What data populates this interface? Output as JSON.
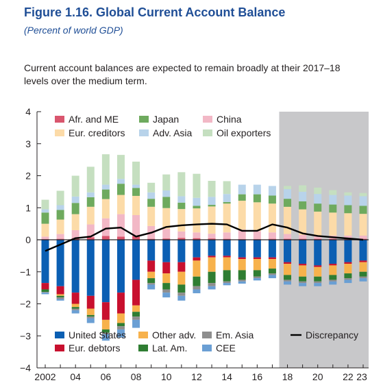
{
  "figure": {
    "title": "Figure 1.16.  Global Current Account Balance",
    "subtitle": "(Percent of world GDP)",
    "description": "Current account balances are expected to remain broadly at their 2017–18 levels over the medium term."
  },
  "chart_data": {
    "type": "bar",
    "stacked": true,
    "title": "Global Current Account Balance",
    "xlabel": "",
    "ylabel": "",
    "ylim": [
      -4,
      4
    ],
    "yticks": [
      "4",
      "3",
      "2",
      "1",
      "0",
      "−1",
      "−2",
      "−3",
      "−4"
    ],
    "categories": [
      "2002",
      "03",
      "04",
      "05",
      "06",
      "07",
      "08",
      "09",
      "10",
      "11",
      "12",
      "13",
      "14",
      "15",
      "16",
      "17",
      "18",
      "19",
      "20",
      "21",
      "22",
      "23"
    ],
    "xtick_labels": [
      "2002",
      "04",
      "06",
      "08",
      "10",
      "12",
      "14",
      "16",
      "18",
      "20",
      "22",
      "23"
    ],
    "projection_shaded_from": "18",
    "grid": false,
    "series": [
      {
        "name": "Afr. and ME",
        "color": "#d9566e",
        "values": [
          0.02,
          0.03,
          0.05,
          0.08,
          0.12,
          0.1,
          0.12,
          0.03,
          0.04,
          0.06,
          0.05,
          0.04,
          0.03,
          0.02,
          0.02,
          0.03,
          0.03,
          0.03,
          0.03,
          0.03,
          0.03,
          0.03
        ]
      },
      {
        "name": "China",
        "color": "#f2b8c6",
        "values": [
          0.08,
          0.15,
          0.25,
          0.4,
          0.55,
          0.7,
          0.65,
          0.4,
          0.3,
          0.2,
          0.18,
          0.15,
          0.2,
          0.3,
          0.25,
          0.2,
          0.15,
          0.12,
          0.1,
          0.1,
          0.1,
          0.1
        ]
      },
      {
        "name": "Eur. creditors",
        "color": "#fcdba8",
        "values": [
          0.4,
          0.45,
          0.5,
          0.55,
          0.6,
          0.6,
          0.6,
          0.6,
          0.65,
          0.7,
          0.75,
          0.85,
          0.9,
          0.9,
          0.9,
          0.9,
          0.85,
          0.8,
          0.75,
          0.72,
          0.7,
          0.68
        ]
      },
      {
        "name": "Japan",
        "color": "#6eaa5e",
        "values": [
          0.35,
          0.3,
          0.35,
          0.3,
          0.3,
          0.35,
          0.25,
          0.25,
          0.35,
          0.2,
          0.08,
          0.05,
          0.05,
          0.2,
          0.25,
          0.25,
          0.25,
          0.25,
          0.25,
          0.25,
          0.25,
          0.25
        ]
      },
      {
        "name": "Adv. Asia",
        "color": "#b8d3ea",
        "values": [
          0.1,
          0.15,
          0.2,
          0.15,
          0.15,
          0.15,
          0.1,
          0.2,
          0.2,
          0.2,
          0.25,
          0.25,
          0.25,
          0.3,
          0.3,
          0.3,
          0.3,
          0.3,
          0.3,
          0.3,
          0.3,
          0.3
        ]
      },
      {
        "name": "Oil exporters",
        "color": "#c5dfc0",
        "values": [
          0.3,
          0.45,
          0.65,
          0.8,
          0.95,
          0.75,
          0.72,
          0.3,
          0.5,
          0.75,
          0.75,
          0.5,
          0.4,
          0.0,
          0.0,
          0.0,
          0.1,
          0.2,
          0.2,
          0.15,
          0.1,
          0.1
        ]
      },
      {
        "name": "United States",
        "color": "#0b5fb3",
        "values": [
          -1.35,
          -1.45,
          -1.65,
          -1.75,
          -1.95,
          -1.65,
          -1.25,
          -0.65,
          -0.7,
          -0.7,
          -0.55,
          -0.5,
          -0.5,
          -0.55,
          -0.55,
          -0.55,
          -0.7,
          -0.75,
          -0.8,
          -0.75,
          -0.7,
          -0.65
        ]
      },
      {
        "name": "Eur. debtors",
        "color": "#c8102e",
        "values": [
          -0.2,
          -0.25,
          -0.35,
          -0.4,
          -0.55,
          -0.65,
          -0.8,
          -0.35,
          -0.35,
          -0.3,
          -0.1,
          -0.05,
          -0.05,
          -0.05,
          -0.05,
          -0.05,
          -0.05,
          -0.05,
          -0.05,
          -0.05,
          -0.05,
          -0.05
        ]
      },
      {
        "name": "Other adv.",
        "color": "#f7b24c",
        "values": [
          0.0,
          -0.05,
          -0.1,
          -0.2,
          -0.3,
          -0.3,
          -0.2,
          -0.2,
          -0.3,
          -0.4,
          -0.5,
          -0.45,
          -0.4,
          -0.35,
          -0.35,
          -0.3,
          -0.35,
          -0.35,
          -0.3,
          -0.3,
          -0.3,
          -0.3
        ]
      },
      {
        "name": "Lat. Am.",
        "color": "#2f7d32",
        "values": [
          -0.08,
          -0.05,
          -0.05,
          -0.05,
          -0.1,
          -0.1,
          -0.15,
          -0.15,
          -0.2,
          -0.25,
          -0.3,
          -0.35,
          -0.35,
          -0.3,
          -0.2,
          -0.15,
          -0.15,
          -0.15,
          -0.15,
          -0.15,
          -0.15,
          -0.15
        ]
      },
      {
        "name": "Em. Asia",
        "color": "#8e8e8e",
        "values": [
          -0.02,
          -0.05,
          -0.05,
          -0.05,
          -0.05,
          -0.1,
          -0.1,
          -0.05,
          -0.1,
          -0.1,
          -0.1,
          -0.1,
          -0.05,
          -0.05,
          -0.05,
          -0.05,
          -0.05,
          -0.05,
          -0.05,
          -0.05,
          -0.05,
          -0.05
        ]
      },
      {
        "name": "CEE",
        "color": "#6a9fd4",
        "values": [
          -0.05,
          -0.05,
          -0.1,
          -0.15,
          -0.2,
          -0.25,
          -0.25,
          -0.15,
          -0.15,
          -0.15,
          -0.12,
          -0.1,
          -0.07,
          -0.07,
          -0.07,
          -0.1,
          -0.1,
          -0.1,
          -0.1,
          -0.1,
          -0.1,
          -0.1
        ]
      },
      {
        "name": "Discrepancy",
        "color": "#000000",
        "type": "line",
        "values": [
          -0.35,
          -0.15,
          0.05,
          0.1,
          0.35,
          0.38,
          0.1,
          0.22,
          0.4,
          0.45,
          0.48,
          0.5,
          0.48,
          0.28,
          0.28,
          0.48,
          0.38,
          0.2,
          0.12,
          0.08,
          0.04,
          0.0
        ]
      }
    ],
    "legend_top": [
      [
        "Afr. and ME",
        "Japan",
        "China"
      ],
      [
        "Eur. creditors",
        "Adv. Asia",
        "Oil exporters"
      ]
    ],
    "legend_bottom": [
      [
        "United States",
        "Other adv.",
        "Em. Asia",
        "Discrepancy"
      ],
      [
        "Eur. debtors",
        "Lat. Am.",
        "CEE"
      ]
    ],
    "colors": {
      "title": "#1f4e96",
      "projection_shade": "#c8c8ca",
      "axis": "#231f20"
    }
  }
}
